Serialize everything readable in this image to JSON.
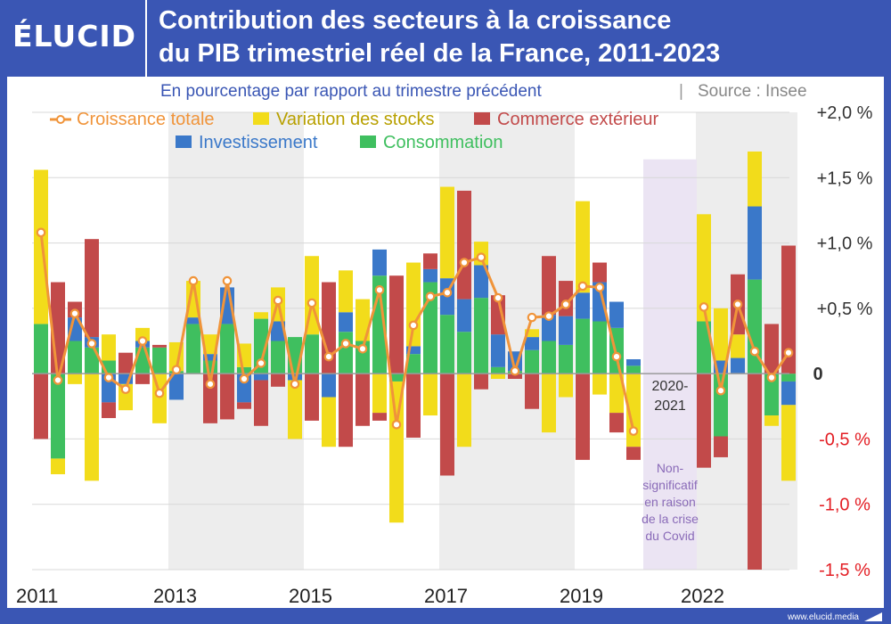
{
  "logo": "ÉLUCID",
  "title_line1": "Contribution des secteurs à la croissance",
  "title_line2": "du PIB trimestriel réel de la France, 2011-2023",
  "subtitle": "En pourcentage par rapport au trimestre précédent",
  "source": "Source : Insee",
  "footer": "www.elucid.media",
  "covid_label_years": [
    "2020-",
    "2021"
  ],
  "covid_note": [
    "Non-",
    "significatif",
    "en raison",
    "de la crise",
    "du Covid"
  ],
  "colors": {
    "total": "#f0943a",
    "stocks": "#f2dc1b",
    "commerce": "#c24a4a",
    "investissement": "#3a78c9",
    "consommation": "#3fbf5f",
    "covid": "#ebe4f3",
    "covid_text": "#8a6bb8",
    "band": "#ededed",
    "brand": "#3a56b4"
  },
  "chart_data": {
    "type": "bar",
    "stacked": true,
    "title": "Contribution des secteurs à la croissance du PIB trimestriel réel de la France, 2011-2023",
    "subtitle": "En pourcentage par rapport au trimestre précédent",
    "ylim": [
      -1.5,
      2.0
    ],
    "yticks": [
      {
        "value": 2.0,
        "label": "+2,0 %"
      },
      {
        "value": 1.5,
        "label": "+1,5 %"
      },
      {
        "value": 1.0,
        "label": "+1,0 %"
      },
      {
        "value": 0.5,
        "label": "+0,5 %"
      },
      {
        "value": 0,
        "label": "0"
      },
      {
        "value": -0.5,
        "label": "-0,5 %"
      },
      {
        "value": -1.0,
        "label": "-1,0 %"
      },
      {
        "value": -1.5,
        "label": "-1,5 %"
      }
    ],
    "xticks": [
      {
        "label": "2011",
        "year": 2011
      },
      {
        "label": "2013",
        "year": 2013
      },
      {
        "label": "2015",
        "year": 2015
      },
      {
        "label": "2017",
        "year": 2017
      },
      {
        "label": "2019",
        "year": 2019
      },
      {
        "label": "2022",
        "year": 2022
      }
    ],
    "legend": [
      {
        "key": "total",
        "label": "Croissance totale",
        "marker": "line"
      },
      {
        "key": "stocks",
        "label": "Variation des stocks",
        "marker": "bar"
      },
      {
        "key": "commerce",
        "label": "Commerce extérieur",
        "marker": "bar"
      },
      {
        "key": "investissement",
        "label": "Investissement",
        "marker": "bar"
      },
      {
        "key": "consommation",
        "label": "Consommation",
        "marker": "bar"
      }
    ],
    "covid_excluded": [
      "2020",
      "2021"
    ],
    "quarters": [
      {
        "q": "2011T1",
        "consommation": 0.38,
        "investissement": 0.0,
        "commerce": -0.5,
        "stocks": 1.18,
        "total": 1.08
      },
      {
        "q": "2011T2",
        "consommation": -0.65,
        "investissement": 0.0,
        "commerce": 0.7,
        "stocks": -0.12,
        "total": -0.05
      },
      {
        "q": "2011T3",
        "consommation": 0.25,
        "investissement": 0.18,
        "commerce": 0.12,
        "stocks": -0.08,
        "total": 0.46
      },
      {
        "q": "2011T4",
        "consommation": 0.2,
        "investissement": 0.08,
        "commerce": 0.75,
        "stocks": -0.82,
        "total": 0.23
      },
      {
        "q": "2012T1",
        "consommation": 0.1,
        "investissement": -0.22,
        "commerce": -0.12,
        "stocks": 0.2,
        "total": -0.03
      },
      {
        "q": "2012T2",
        "consommation": 0.0,
        "investissement": -0.08,
        "commerce": 0.16,
        "stocks": -0.2,
        "total": -0.12
      },
      {
        "q": "2012T3",
        "consommation": 0.2,
        "investissement": 0.05,
        "commerce": -0.08,
        "stocks": 0.1,
        "total": 0.25
      },
      {
        "q": "2012T4",
        "consommation": 0.2,
        "investissement": 0.0,
        "commerce": 0.02,
        "stocks": -0.38,
        "total": -0.15
      },
      {
        "q": "2013T1",
        "consommation": 0.02,
        "investissement": -0.2,
        "commerce": 0.0,
        "stocks": 0.22,
        "total": 0.03
      },
      {
        "q": "2013T2",
        "consommation": 0.38,
        "investissement": 0.05,
        "commerce": 0.0,
        "stocks": 0.28,
        "total": 0.71
      },
      {
        "q": "2013T3",
        "consommation": 0.1,
        "investissement": 0.05,
        "commerce": -0.38,
        "stocks": 0.15,
        "total": -0.08
      },
      {
        "q": "2013T4",
        "consommation": 0.38,
        "investissement": 0.28,
        "commerce": -0.35,
        "stocks": 0.0,
        "total": 0.71
      },
      {
        "q": "2014T1",
        "consommation": 0.05,
        "investissement": -0.22,
        "commerce": -0.05,
        "stocks": 0.18,
        "total": -0.04
      },
      {
        "q": "2014T2",
        "consommation": 0.42,
        "investissement": -0.05,
        "commerce": -0.35,
        "stocks": 0.05,
        "total": 0.08
      },
      {
        "q": "2014T3",
        "consommation": 0.25,
        "investissement": 0.15,
        "commerce": -0.1,
        "stocks": 0.26,
        "total": 0.56
      },
      {
        "q": "2014T4",
        "consommation": 0.28,
        "investissement": -0.05,
        "commerce": 0.0,
        "stocks": -0.45,
        "total": -0.08
      },
      {
        "q": "2015T1",
        "consommation": 0.3,
        "investissement": 0.0,
        "commerce": -0.36,
        "stocks": 0.6,
        "total": 0.54
      },
      {
        "q": "2015T2",
        "consommation": 0.0,
        "investissement": -0.18,
        "commerce": 0.7,
        "stocks": -0.38,
        "total": 0.13
      },
      {
        "q": "2015T3",
        "consommation": 0.32,
        "investissement": 0.15,
        "commerce": -0.56,
        "stocks": 0.32,
        "total": 0.23
      },
      {
        "q": "2015T4",
        "consommation": 0.25,
        "investissement": 0.0,
        "commerce": -0.4,
        "stocks": 0.32,
        "total": 0.19
      },
      {
        "q": "2016T1",
        "consommation": 0.75,
        "investissement": 0.2,
        "commerce": -0.06,
        "stocks": -0.3,
        "total": 0.64
      },
      {
        "q": "2016T2",
        "consommation": -0.06,
        "investissement": 0.0,
        "commerce": 0.75,
        "stocks": -1.08,
        "total": -0.39
      },
      {
        "q": "2016T3",
        "consommation": 0.15,
        "investissement": 0.06,
        "commerce": -0.49,
        "stocks": 0.64,
        "total": 0.37
      },
      {
        "q": "2016T4",
        "consommation": 0.7,
        "investissement": 0.1,
        "commerce": 0.12,
        "stocks": -0.32,
        "total": 0.59
      },
      {
        "q": "2017T1",
        "consommation": 0.45,
        "investissement": 0.28,
        "commerce": -0.78,
        "stocks": 0.7,
        "total": 0.62
      },
      {
        "q": "2017T2",
        "consommation": 0.32,
        "investissement": 0.25,
        "commerce": 0.83,
        "stocks": -0.56,
        "total": 0.85
      },
      {
        "q": "2017T3",
        "consommation": 0.58,
        "investissement": 0.25,
        "commerce": -0.12,
        "stocks": 0.18,
        "total": 0.89
      },
      {
        "q": "2017T4",
        "consommation": 0.05,
        "investissement": 0.25,
        "commerce": 0.3,
        "stocks": -0.04,
        "total": 0.58
      },
      {
        "q": "2018T1",
        "consommation": 0.02,
        "investissement": 0.15,
        "commerce": -0.04,
        "stocks": 0.0,
        "total": 0.02
      },
      {
        "q": "2018T2",
        "consommation": 0.18,
        "investissement": 0.1,
        "commerce": -0.27,
        "stocks": 0.06,
        "total": 0.43
      },
      {
        "q": "2018T3",
        "consommation": 0.25,
        "investissement": 0.2,
        "commerce": 0.45,
        "stocks": -0.45,
        "total": 0.44
      },
      {
        "q": "2018T4",
        "consommation": 0.22,
        "investissement": 0.22,
        "commerce": 0.27,
        "stocks": -0.18,
        "total": 0.53
      },
      {
        "q": "2019T1",
        "consommation": 0.42,
        "investissement": 0.2,
        "commerce": -0.66,
        "stocks": 0.7,
        "total": 0.67
      },
      {
        "q": "2019T2",
        "consommation": 0.4,
        "investissement": 0.3,
        "commerce": 0.15,
        "stocks": -0.16,
        "total": 0.66
      },
      {
        "q": "2019T3",
        "consommation": 0.35,
        "investissement": 0.2,
        "commerce": -0.15,
        "stocks": -0.3,
        "total": 0.13
      },
      {
        "q": "2019T4",
        "consommation": 0.06,
        "investissement": 0.05,
        "commerce": -0.1,
        "stocks": -0.56,
        "total": -0.44
      },
      {
        "q": "2022T1",
        "consommation": 0.4,
        "investissement": 0.0,
        "commerce": -0.72,
        "stocks": 0.82,
        "total": 0.51
      },
      {
        "q": "2022T2",
        "consommation": -0.48,
        "investissement": 0.1,
        "commerce": -0.16,
        "stocks": 0.4,
        "total": -0.13
      },
      {
        "q": "2022T3",
        "consommation": 0.0,
        "investissement": 0.12,
        "commerce": 0.46,
        "stocks": 0.18,
        "total": 0.53
      },
      {
        "q": "2022T4",
        "consommation": 0.72,
        "investissement": 0.56,
        "commerce": -1.5,
        "stocks": 0.42,
        "total": 0.17
      },
      {
        "q": "2023T1",
        "consommation": -0.32,
        "investissement": 0.0,
        "commerce": 0.38,
        "stocks": -0.08,
        "total": -0.03
      },
      {
        "q": "2023T2",
        "consommation": -0.06,
        "investissement": -0.18,
        "commerce": 0.98,
        "stocks": -0.58,
        "total": 0.16
      }
    ]
  }
}
